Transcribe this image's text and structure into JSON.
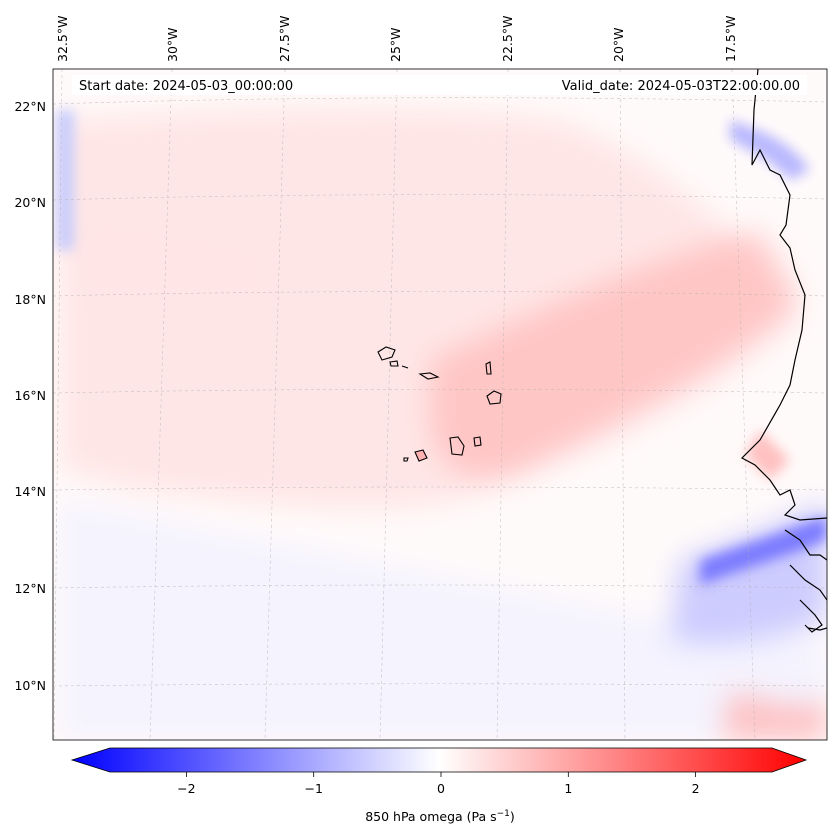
{
  "map": {
    "start_date": "Start date: 2024-05-03_00:00:00",
    "valid_date": "Valid_date: 2024-05-03T22:00:00.00",
    "lon_labels": [
      "32.5°W",
      "30°W",
      "27.5°W",
      "25°W",
      "22.5°W",
      "20°W",
      "17.5°W"
    ],
    "lat_labels": [
      "22°N",
      "20°N",
      "18°N",
      "16°N",
      "14°N",
      "12°N",
      "10°N"
    ],
    "extent": {
      "lon_min": -33.0,
      "lon_max": -15.8,
      "lat_min": 8.8,
      "lat_max": 22.8
    }
  },
  "colorbar": {
    "label": "850 hPa omega (Pa s",
    "label_sup": "−1",
    "label_end": ")",
    "ticks": [
      -2,
      -1,
      0,
      1,
      2
    ],
    "tick_labels": [
      "−2",
      "−1",
      "0",
      "1",
      "2"
    ],
    "range": [
      -2.6,
      2.6
    ],
    "color_low": "#0000ff",
    "color_mid": "#ffffff",
    "color_high": "#ff0000"
  }
}
